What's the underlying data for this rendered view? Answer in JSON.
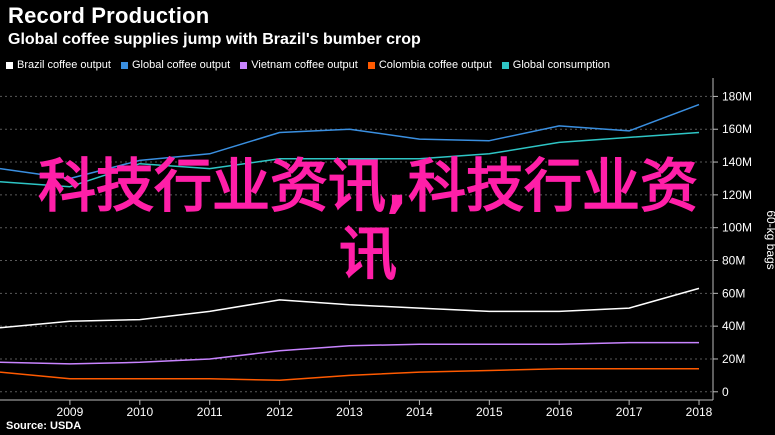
{
  "title": "Record Production",
  "subtitle": "Global coffee supplies jump with Brazil's bumber crop",
  "source": "Source: USDA",
  "overlay_text": "科技行业资讯,科技行业资讯",
  "chart_data": {
    "type": "line",
    "x": [
      2008,
      2009,
      2010,
      2011,
      2012,
      2013,
      2014,
      2015,
      2016,
      2017,
      2018
    ],
    "xticks": [
      "2009",
      "2010",
      "2011",
      "2012",
      "2013",
      "2014",
      "2015",
      "2016",
      "2017",
      "2018"
    ],
    "xlim": [
      2008.0,
      2018.2
    ],
    "ylim": [
      -5,
      190
    ],
    "yticks": [
      0,
      20,
      40,
      60,
      80,
      100,
      120,
      140,
      160,
      180
    ],
    "ytick_labels": [
      "0",
      "20M",
      "40M",
      "60M",
      "80M",
      "100M",
      "120M",
      "140M",
      "160M",
      "180M"
    ],
    "ylabel": "60-kg bags",
    "legend_position": "top-left",
    "grid": "horizontal dashed",
    "series": [
      {
        "name": "Brazil coffee output",
        "color": "#ffffff",
        "values": [
          39,
          43,
          44,
          49,
          56,
          53,
          51,
          49,
          49,
          51,
          63
        ]
      },
      {
        "name": "Global coffee output",
        "color": "#3a8fe0",
        "values": [
          136,
          130,
          141,
          145,
          158,
          160,
          154,
          153,
          162,
          159,
          175
        ]
      },
      {
        "name": "Vietnam coffee output",
        "color": "#c884ff",
        "values": [
          18,
          17,
          18,
          20,
          25,
          28,
          29,
          29,
          29,
          30,
          30
        ]
      },
      {
        "name": "Colombia coffee output",
        "color": "#ff5a00",
        "values": [
          12,
          8,
          8,
          8,
          7,
          10,
          12,
          13,
          14,
          14,
          14
        ]
      },
      {
        "name": "Global consumption",
        "color": "#2ec5c5",
        "values": [
          128,
          125,
          139,
          136,
          142,
          142,
          142,
          145,
          152,
          155,
          158
        ]
      }
    ]
  }
}
